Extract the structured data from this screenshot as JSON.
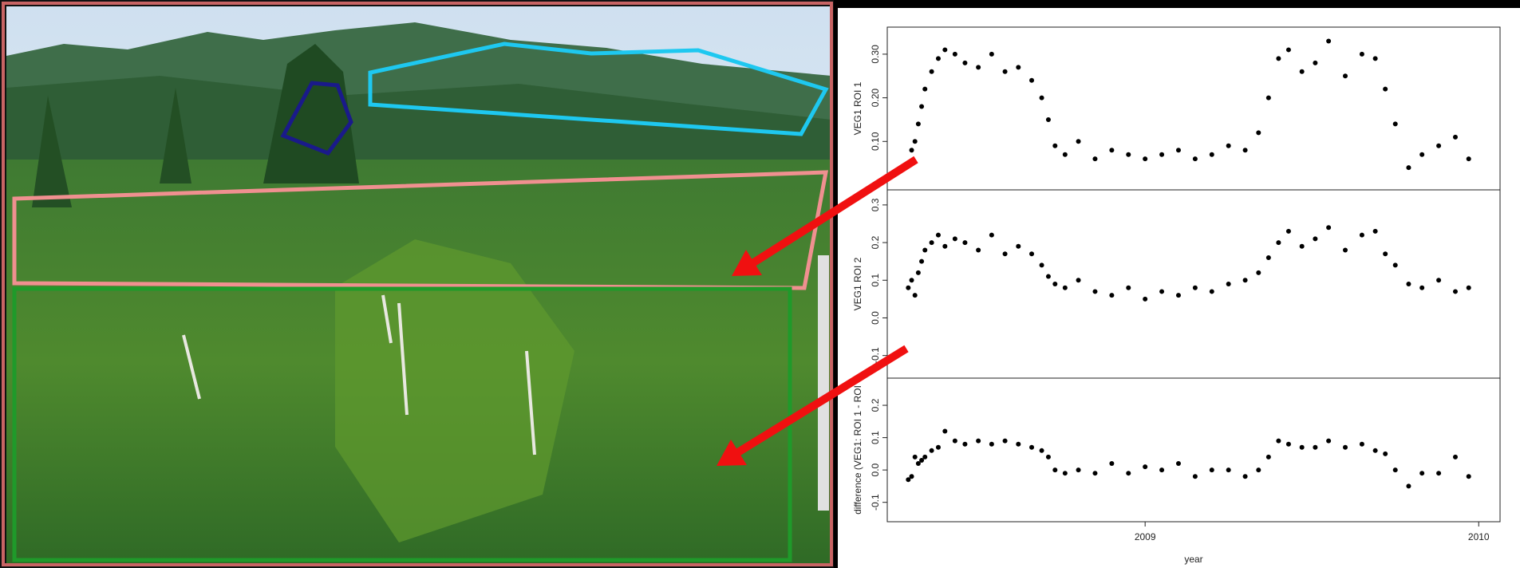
{
  "chart_data": [
    {
      "type": "scatter",
      "ylabel": "VEG1 ROI 1",
      "color": "#000000",
      "xlim": [
        2008.227,
        2010.064
      ],
      "ylim": [
        -0.011,
        0.362
      ],
      "yticks": [
        {
          "value": 0.1,
          "label": "0.10"
        },
        {
          "value": 0.2,
          "label": "0.20"
        },
        {
          "value": 0.3,
          "label": "0.30"
        }
      ],
      "x": [
        2008.29,
        2008.3,
        2008.31,
        2008.32,
        2008.33,
        2008.34,
        2008.36,
        2008.38,
        2008.4,
        2008.43,
        2008.46,
        2008.5,
        2008.54,
        2008.58,
        2008.62,
        2008.66,
        2008.69,
        2008.71,
        2008.73,
        2008.76,
        2008.8,
        2008.85,
        2008.9,
        2008.95,
        2009.0,
        2009.05,
        2009.1,
        2009.15,
        2009.2,
        2009.25,
        2009.3,
        2009.34,
        2009.37,
        2009.4,
        2009.43,
        2009.47,
        2009.51,
        2009.55,
        2009.6,
        2009.65,
        2009.69,
        2009.72,
        2009.75,
        2009.79,
        2009.83,
        2009.88,
        2009.93,
        2009.97
      ],
      "values": [
        0.05,
        0.08,
        0.1,
        0.14,
        0.18,
        0.22,
        0.26,
        0.29,
        0.31,
        0.3,
        0.28,
        0.27,
        0.3,
        0.26,
        0.27,
        0.24,
        0.2,
        0.15,
        0.09,
        0.07,
        0.1,
        0.06,
        0.08,
        0.07,
        0.06,
        0.07,
        0.08,
        0.06,
        0.07,
        0.09,
        0.08,
        0.12,
        0.2,
        0.29,
        0.31,
        0.26,
        0.28,
        0.33,
        0.25,
        0.3,
        0.29,
        0.22,
        0.14,
        0.04,
        0.07,
        0.09,
        0.11,
        0.06
      ]
    },
    {
      "type": "scatter",
      "ylabel": "VEG1 ROI 2",
      "color": "#000000",
      "xlim": [
        2008.227,
        2010.064
      ],
      "ylim": [
        -0.16,
        0.34
      ],
      "yticks": [
        {
          "value": -0.1,
          "label": "-0.1"
        },
        {
          "value": 0,
          "label": "0.0"
        },
        0.1,
        0.2,
        0.3
      ],
      "x": [
        2008.29,
        2008.3,
        2008.31,
        2008.32,
        2008.33,
        2008.34,
        2008.36,
        2008.38,
        2008.4,
        2008.43,
        2008.46,
        2008.5,
        2008.54,
        2008.58,
        2008.62,
        2008.66,
        2008.69,
        2008.71,
        2008.73,
        2008.76,
        2008.8,
        2008.85,
        2008.9,
        2008.95,
        2009.0,
        2009.05,
        2009.1,
        2009.15,
        2009.2,
        2009.25,
        2009.3,
        2009.34,
        2009.37,
        2009.4,
        2009.43,
        2009.47,
        2009.51,
        2009.55,
        2009.6,
        2009.65,
        2009.69,
        2009.72,
        2009.75,
        2009.79,
        2009.83,
        2009.88,
        2009.93,
        2009.97
      ],
      "values": [
        0.08,
        0.1,
        0.06,
        0.12,
        0.15,
        0.18,
        0.2,
        0.22,
        0.19,
        0.21,
        0.2,
        0.18,
        0.22,
        0.17,
        0.19,
        0.17,
        0.14,
        0.11,
        0.09,
        0.08,
        0.1,
        0.07,
        0.06,
        0.08,
        0.05,
        0.07,
        0.06,
        0.08,
        0.07,
        0.09,
        0.1,
        0.12,
        0.16,
        0.2,
        0.23,
        0.19,
        0.21,
        0.24,
        0.18,
        0.22,
        0.23,
        0.17,
        0.14,
        0.09,
        0.08,
        0.1,
        0.07,
        0.08
      ]
    },
    {
      "type": "scatter",
      "ylabel": "difference (VEG1: ROI 1 - ROI",
      "xlabel": "year",
      "color": "#000000",
      "xlim": [
        2008.227,
        2010.064
      ],
      "ylim": [
        -0.16,
        0.284
      ],
      "xticks": [
        2009,
        2010
      ],
      "yticks": [
        {
          "value": -0.1,
          "label": "-0.1"
        },
        {
          "value": 0,
          "label": "0.0"
        },
        0.1,
        0.2
      ],
      "x": [
        2008.29,
        2008.3,
        2008.31,
        2008.32,
        2008.33,
        2008.34,
        2008.36,
        2008.38,
        2008.4,
        2008.43,
        2008.46,
        2008.5,
        2008.54,
        2008.58,
        2008.62,
        2008.66,
        2008.69,
        2008.71,
        2008.73,
        2008.76,
        2008.8,
        2008.85,
        2008.9,
        2008.95,
        2009.0,
        2009.05,
        2009.1,
        2009.15,
        2009.2,
        2009.25,
        2009.3,
        2009.34,
        2009.37,
        2009.4,
        2009.43,
        2009.47,
        2009.51,
        2009.55,
        2009.6,
        2009.65,
        2009.69,
        2009.72,
        2009.75,
        2009.79,
        2009.83,
        2009.88,
        2009.93,
        2009.97
      ],
      "values": [
        -0.03,
        -0.02,
        0.04,
        0.02,
        0.03,
        0.04,
        0.06,
        0.07,
        0.12,
        0.09,
        0.08,
        0.09,
        0.08,
        0.09,
        0.08,
        0.07,
        0.06,
        0.04,
        0.0,
        -0.01,
        0.0,
        -0.01,
        0.02,
        -0.01,
        0.01,
        0.0,
        0.02,
        -0.02,
        0.0,
        0.0,
        -0.02,
        0.0,
        0.04,
        0.09,
        0.08,
        0.07,
        0.07,
        0.09,
        0.07,
        0.08,
        0.06,
        0.05,
        0.0,
        -0.05,
        -0.01,
        -0.01,
        0.04,
        -0.02
      ]
    }
  ]
}
